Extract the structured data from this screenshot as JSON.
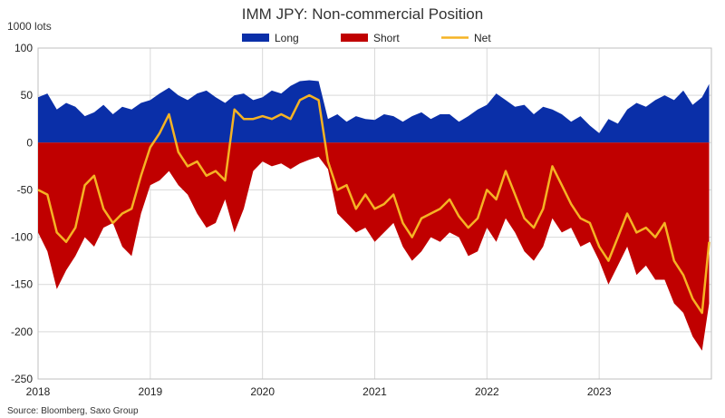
{
  "chart_data": {
    "type": "area",
    "title": "IMM JPY: Non-commercial Position",
    "ylabel": "1000 lots",
    "xlabel": "",
    "ylim": [
      -250,
      100
    ],
    "yticks": [
      100,
      50,
      0,
      -50,
      -100,
      -150,
      -200,
      -250
    ],
    "xlim": [
      2018.0,
      2024.0
    ],
    "xticks": [
      {
        "label": "2018",
        "value": 2018.0
      },
      {
        "label": "2019",
        "value": 2019.0
      },
      {
        "label": "2020",
        "value": 2020.0
      },
      {
        "label": "2021",
        "value": 2021.0
      },
      {
        "label": "2022",
        "value": 2022.0
      },
      {
        "label": "2023",
        "value": 2023.0
      }
    ],
    "grid": true,
    "legend_position": "top-center",
    "source": "Source: Bloomberg, Saxo Group",
    "x": [
      2018.0,
      2018.083,
      2018.167,
      2018.25,
      2018.333,
      2018.417,
      2018.5,
      2018.583,
      2018.667,
      2018.75,
      2018.833,
      2018.917,
      2019.0,
      2019.083,
      2019.167,
      2019.25,
      2019.333,
      2019.417,
      2019.5,
      2019.583,
      2019.667,
      2019.75,
      2019.833,
      2019.917,
      2020.0,
      2020.083,
      2020.167,
      2020.25,
      2020.333,
      2020.417,
      2020.5,
      2020.583,
      2020.667,
      2020.75,
      2020.833,
      2020.917,
      2021.0,
      2021.083,
      2021.167,
      2021.25,
      2021.333,
      2021.417,
      2021.5,
      2021.583,
      2021.667,
      2021.75,
      2021.833,
      2021.917,
      2022.0,
      2022.083,
      2022.167,
      2022.25,
      2022.333,
      2022.417,
      2022.5,
      2022.583,
      2022.667,
      2022.75,
      2022.833,
      2022.917,
      2023.0,
      2023.083,
      2023.167,
      2023.25,
      2023.333,
      2023.417,
      2023.5,
      2023.583,
      2023.667,
      2023.75,
      2023.833,
      2023.917,
      2023.98
    ],
    "series": [
      {
        "name": "Long",
        "color": "#0a2fa8",
        "values": [
          48,
          52,
          35,
          42,
          38,
          28,
          32,
          40,
          30,
          38,
          35,
          42,
          45,
          52,
          58,
          50,
          45,
          52,
          55,
          48,
          42,
          50,
          52,
          45,
          48,
          55,
          52,
          60,
          65,
          66,
          65,
          25,
          30,
          22,
          28,
          25,
          24,
          30,
          28,
          22,
          28,
          32,
          25,
          30,
          30,
          22,
          28,
          35,
          40,
          52,
          45,
          38,
          40,
          30,
          38,
          35,
          30,
          22,
          28,
          18,
          10,
          25,
          20,
          35,
          42,
          38,
          45,
          50,
          45,
          55,
          40,
          48,
          62
        ]
      },
      {
        "name": "Short",
        "color": "#c00000",
        "values": [
          -95,
          -115,
          -155,
          -135,
          -120,
          -100,
          -110,
          -90,
          -85,
          -110,
          -120,
          -75,
          -45,
          -40,
          -30,
          -45,
          -55,
          -75,
          -90,
          -85,
          -60,
          -95,
          -70,
          -30,
          -20,
          -25,
          -22,
          -28,
          -22,
          -18,
          -15,
          -28,
          -75,
          -85,
          -95,
          -90,
          -105,
          -95,
          -85,
          -110,
          -125,
          -115,
          -100,
          -105,
          -95,
          -100,
          -120,
          -115,
          -90,
          -105,
          -80,
          -95,
          -115,
          -125,
          -110,
          -80,
          -95,
          -90,
          -110,
          -105,
          -125,
          -150,
          -130,
          -110,
          -140,
          -130,
          -145,
          -145,
          -170,
          -180,
          -205,
          -220,
          -170
        ]
      },
      {
        "name": "Net",
        "color": "#f5b324",
        "values": [
          -50,
          -55,
          -95,
          -105,
          -90,
          -45,
          -35,
          -70,
          -85,
          -75,
          -70,
          -35,
          -5,
          10,
          30,
          -10,
          -25,
          -20,
          -35,
          -30,
          -40,
          35,
          25,
          25,
          28,
          25,
          30,
          25,
          45,
          50,
          45,
          -20,
          -50,
          -45,
          -70,
          -55,
          -70,
          -65,
          -55,
          -85,
          -100,
          -80,
          -75,
          -70,
          -60,
          -78,
          -90,
          -80,
          -50,
          -60,
          -30,
          -55,
          -80,
          -90,
          -70,
          -25,
          -45,
          -65,
          -80,
          -85,
          -110,
          -125,
          -100,
          -75,
          -95,
          -90,
          -100,
          -85,
          -125,
          -140,
          -165,
          -180,
          -105
        ]
      }
    ]
  }
}
